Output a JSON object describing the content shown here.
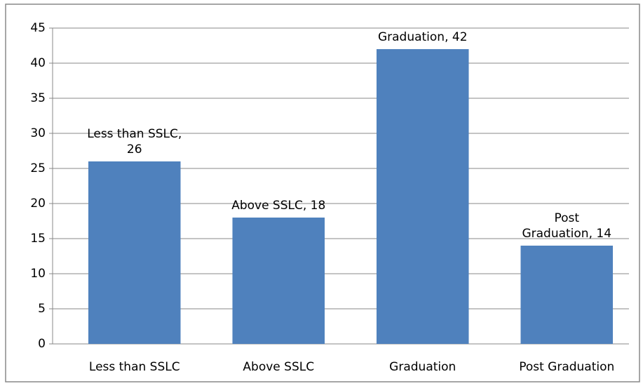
{
  "chart_data": {
    "type": "bar",
    "categories": [
      "Less than SSLC",
      "Above SSLC",
      "Graduation",
      "Post Graduation"
    ],
    "values": [
      26,
      18,
      42,
      14
    ],
    "value_labels": [
      "Less than SSLC, 26",
      "Above SSLC, 18",
      "Graduation, 42",
      "Post Graduation, 14"
    ],
    "color": "#4f81bd",
    "ylim": [
      0,
      45
    ],
    "yticks": [
      0,
      5,
      10,
      15,
      20,
      25,
      30,
      35,
      40,
      45
    ],
    "grid": true
  }
}
